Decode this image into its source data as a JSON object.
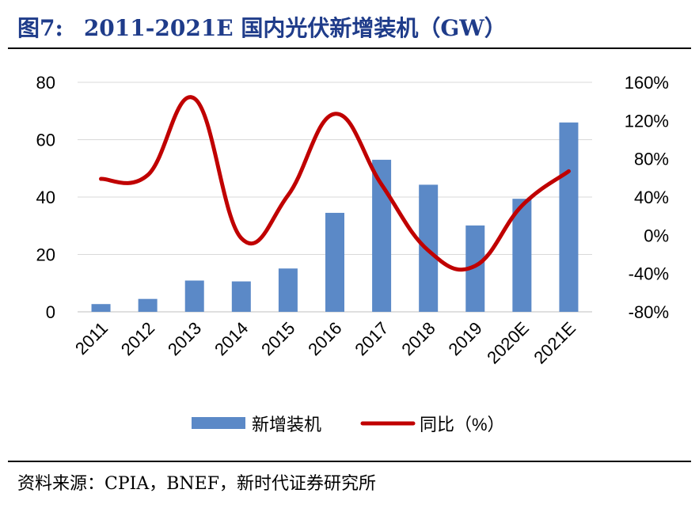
{
  "header": {
    "figure_label": "图7:",
    "title": "2011-2021E 国内光伏新增装机（GW）"
  },
  "footer": {
    "source": "资料来源：CPIA，BNEF，新时代证券研究所"
  },
  "colors": {
    "title": "#1f3c8a",
    "bar": "#5b89c7",
    "line": "#c00000",
    "grid": "#d9d9d9"
  },
  "chart_data": {
    "type": "bar",
    "categories": [
      "2011",
      "2012",
      "2013",
      "2014",
      "2015",
      "2016",
      "2017",
      "2018",
      "2019",
      "2020E",
      "2021E"
    ],
    "series": [
      {
        "name": "新增装机",
        "type": "bar",
        "axis": "left",
        "values": [
          2.7,
          4.5,
          10.9,
          10.6,
          15.1,
          34.5,
          53.0,
          44.3,
          30.1,
          39.4,
          66.0
        ]
      },
      {
        "name": "同比（%）",
        "type": "line",
        "axis": "right",
        "smooth": true,
        "values": [
          59,
          63,
          143,
          -3,
          42,
          127,
          53,
          -16,
          -32,
          31,
          67
        ]
      }
    ],
    "y_left": {
      "ylim": [
        0,
        80
      ],
      "ticks": [
        "0",
        "20",
        "40",
        "60",
        "80"
      ]
    },
    "y_right": {
      "ylim": [
        -80,
        160
      ],
      "ticks": [
        "-80%",
        "-40%",
        "0%",
        "40%",
        "80%",
        "120%",
        "160%"
      ]
    },
    "grid": true,
    "legend": "bottom"
  }
}
